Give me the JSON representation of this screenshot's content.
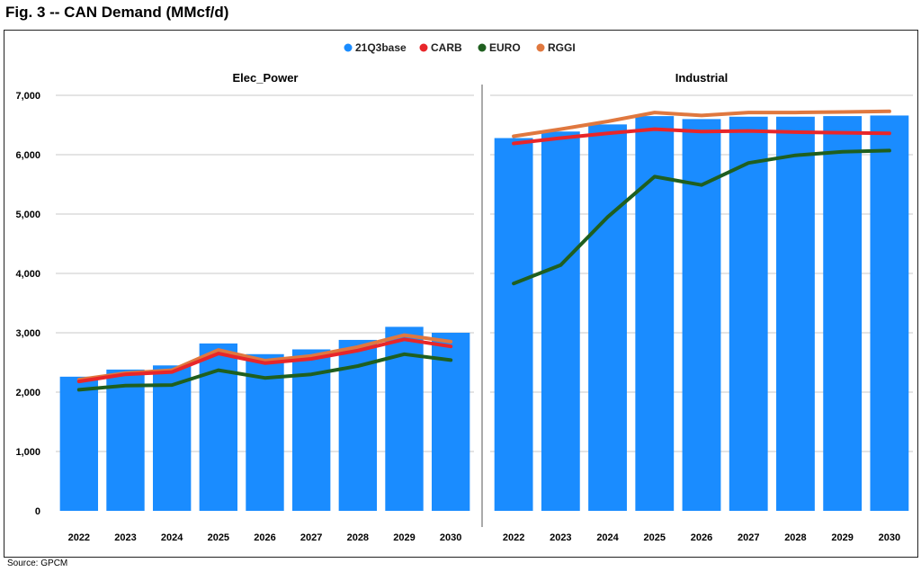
{
  "figure": {
    "title": "Fig. 3 -- CAN Demand (MMcf/d)",
    "source": "Source: GPCM"
  },
  "colors": {
    "21Q3base": "#1a8cff",
    "CARB": "#e8262a",
    "EURO": "#1f5f1f",
    "RGGI": "#e0783f"
  },
  "chart_data": [
    {
      "type": "bar",
      "title": "Elec_Power",
      "categories": [
        "2022",
        "2023",
        "2024",
        "2025",
        "2026",
        "2027",
        "2028",
        "2029",
        "2030"
      ],
      "ylim": [
        0,
        7000
      ],
      "yticks": [
        0,
        1000,
        2000,
        3000,
        4000,
        5000,
        6000,
        7000
      ],
      "ytick_labels": [
        "0",
        "1,000",
        "2,000",
        "3,000",
        "4,000",
        "5,000",
        "6,000",
        "7,000"
      ],
      "grid": true,
      "legend": "top-center",
      "series": [
        {
          "name": "21Q3base",
          "kind": "bar",
          "values": [
            2260,
            2380,
            2450,
            2820,
            2640,
            2720,
            2880,
            3100,
            3000
          ]
        },
        {
          "name": "CARB",
          "kind": "line",
          "values": [
            2180,
            2300,
            2340,
            2650,
            2490,
            2560,
            2700,
            2890,
            2770
          ]
        },
        {
          "name": "EURO",
          "kind": "line",
          "values": [
            2040,
            2110,
            2120,
            2370,
            2240,
            2300,
            2440,
            2640,
            2540
          ]
        },
        {
          "name": "RGGI",
          "kind": "line",
          "values": [
            2210,
            2320,
            2370,
            2710,
            2530,
            2610,
            2760,
            2960,
            2850
          ]
        }
      ]
    },
    {
      "type": "bar",
      "title": "Industrial",
      "categories": [
        "2022",
        "2023",
        "2024",
        "2025",
        "2026",
        "2027",
        "2028",
        "2029",
        "2030"
      ],
      "ylim": [
        0,
        7000
      ],
      "grid": true,
      "series": [
        {
          "name": "21Q3base",
          "kind": "bar",
          "values": [
            6280,
            6390,
            6510,
            6650,
            6600,
            6640,
            6640,
            6650,
            6660
          ]
        },
        {
          "name": "CARB",
          "kind": "line",
          "values": [
            6190,
            6280,
            6360,
            6430,
            6390,
            6400,
            6380,
            6370,
            6360
          ]
        },
        {
          "name": "EURO",
          "kind": "line",
          "values": [
            3830,
            4140,
            4950,
            5630,
            5490,
            5860,
            5990,
            6050,
            6070
          ]
        },
        {
          "name": "RGGI",
          "kind": "line",
          "values": [
            6310,
            6430,
            6560,
            6710,
            6660,
            6710,
            6710,
            6720,
            6730
          ]
        }
      ]
    }
  ]
}
